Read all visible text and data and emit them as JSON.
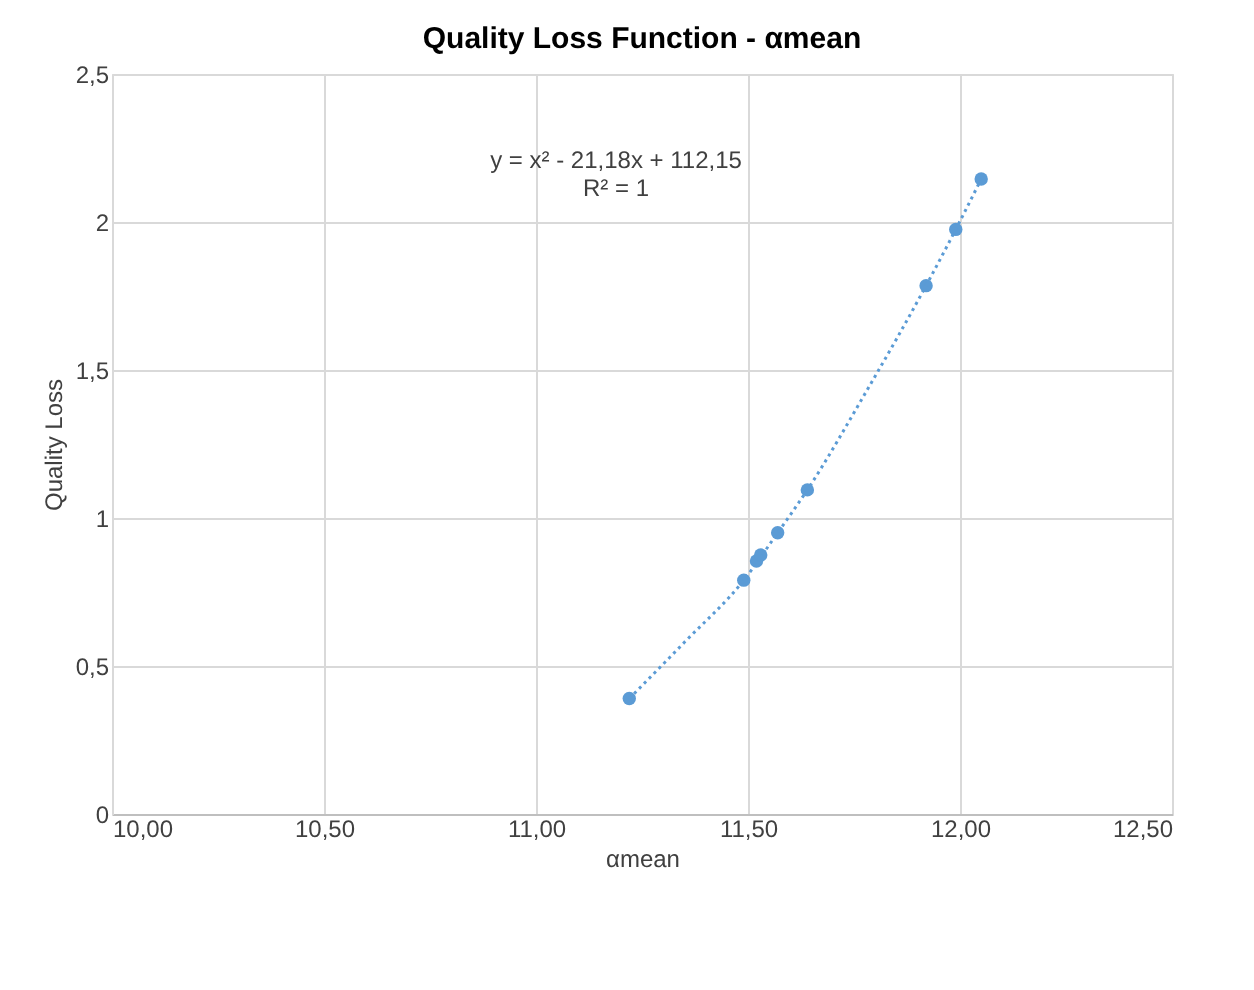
{
  "chart_data": {
    "type": "scatter",
    "title": "Quality Loss Function - αmean",
    "xlabel": "αmean",
    "ylabel": "Quality Loss",
    "annotations": [
      "y = x² - 21,18x + 112,15",
      "R² = 1"
    ],
    "x": [
      11.22,
      11.49,
      11.52,
      11.53,
      11.57,
      11.64,
      11.92,
      11.99,
      12.05
    ],
    "series": [
      {
        "color": "#5b9bd5",
        "marker": "circle",
        "values": [
          0.39,
          0.79,
          0.855,
          0.875,
          0.95,
          1.095,
          1.785,
          1.975,
          2.145
        ]
      },
      {
        "type": "line",
        "color": "#5b9bd5",
        "line_style": "dotted",
        "marker": "none",
        "x": [
          11.22,
          11.35,
          11.49,
          11.57,
          11.64,
          11.78,
          11.92,
          11.99,
          12.05
        ],
        "values": [
          0.39,
          0.58,
          0.79,
          0.95,
          1.095,
          1.43,
          1.785,
          1.975,
          2.145
        ]
      }
    ],
    "xlim": [
      10,
      12.5
    ],
    "xticks": [
      {
        "value": 10,
        "label": "10,00"
      },
      {
        "value": 10.5,
        "label": "10,50"
      },
      {
        "value": 11,
        "label": "11,00"
      },
      {
        "value": 11.5,
        "label": "11,50"
      },
      {
        "value": 12,
        "label": "12,00"
      },
      {
        "value": 12.5,
        "label": "12,50"
      }
    ],
    "ylim": [
      0,
      2.5
    ],
    "yticks": [
      0,
      {
        "value": 0.5,
        "label": "0,5"
      },
      1,
      {
        "value": 1.5,
        "label": "1,5"
      },
      2,
      {
        "value": 2.5,
        "label": "2,5"
      }
    ],
    "grid": true
  }
}
